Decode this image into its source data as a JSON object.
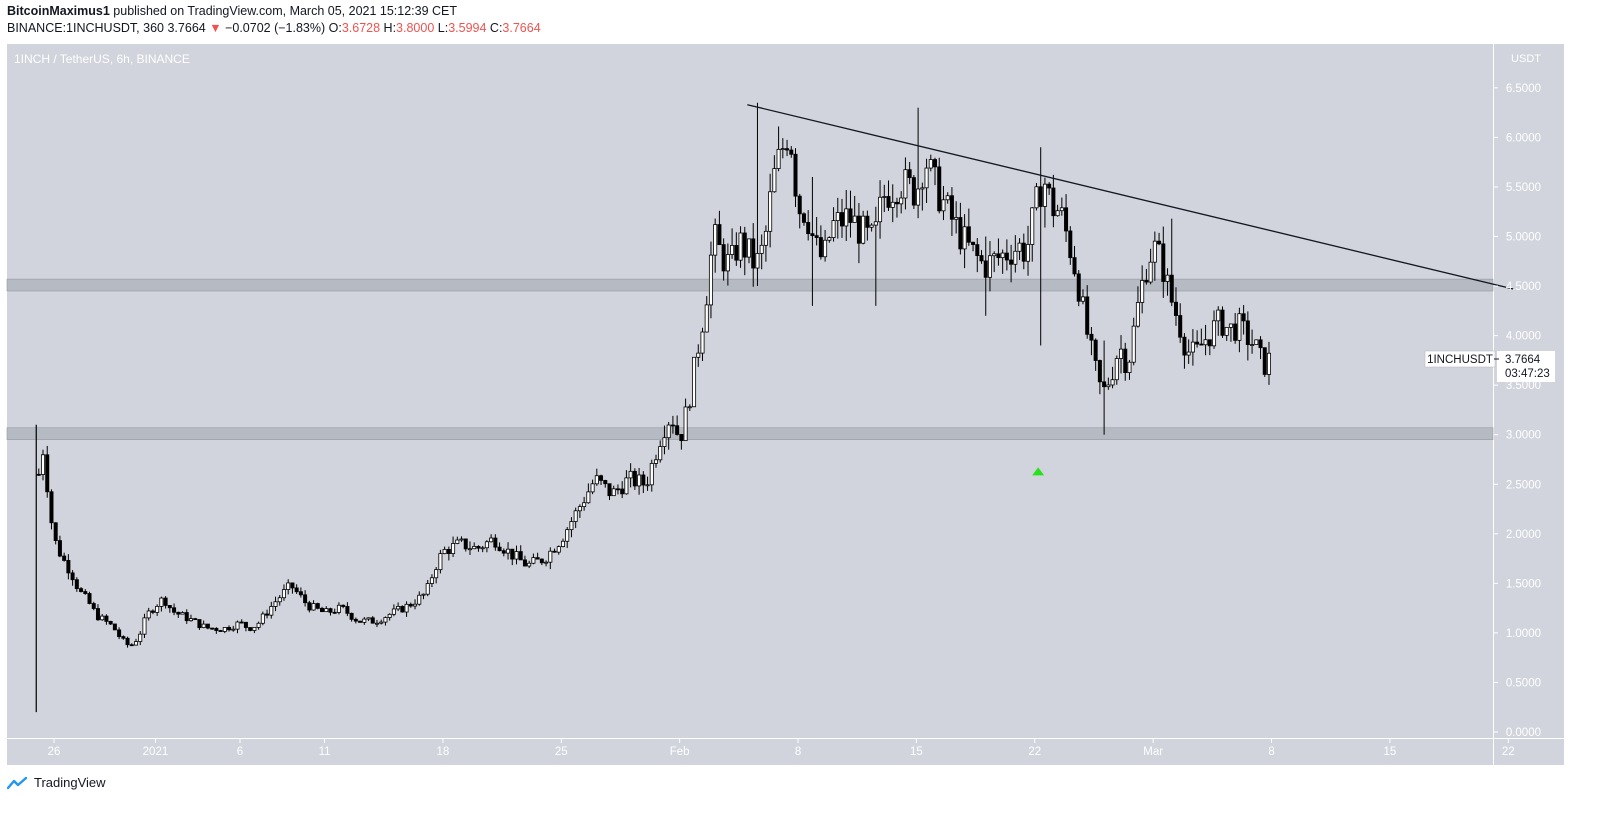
{
  "header": {
    "author": "BitcoinMaximus1",
    "published_text": "published on TradingView.com, March 05, 2021 15:12:39 CET",
    "symbol_line": "BINANCE:1INCHUSDT, 360",
    "last_price": "3.7664",
    "change_arrow": "▼",
    "change": "−0.0702 (−1.83%)",
    "open_label": "O:",
    "open": "3.6728",
    "high_label": "H:",
    "high": "3.8000",
    "low_label": "L:",
    "low": "3.5994",
    "close_label": "C:",
    "close": "3.7664"
  },
  "footer": {
    "brand": "TradingView"
  },
  "colors": {
    "plot_bg": "#d1d4dc",
    "candle": "#000000",
    "zone": "#b2b5be",
    "marker": "#26e21c",
    "down_text": "#ef5350"
  },
  "chart_data": {
    "type": "candlestick",
    "title": "1INCH / TetherUS, 6h, BINANCE",
    "y_axis_unit": "USDT",
    "ylim": [
      0,
      6.7
    ],
    "y_ticks": [
      "0.0000",
      "0.5000",
      "1.0000",
      "1.5000",
      "2.0000",
      "2.5000",
      "3.0000",
      "3.5000",
      "4.0000",
      "4.5000",
      "5.0000",
      "5.5000",
      "6.0000",
      "6.5000"
    ],
    "x_ticks": [
      {
        "label": "26",
        "day": 0
      },
      {
        "label": "2021",
        "day": 6
      },
      {
        "label": "6",
        "day": 11
      },
      {
        "label": "11",
        "day": 16
      },
      {
        "label": "18",
        "day": 23
      },
      {
        "label": "25",
        "day": 30
      },
      {
        "label": "Feb",
        "day": 37
      },
      {
        "label": "8",
        "day": 44
      },
      {
        "label": "15",
        "day": 51
      },
      {
        "label": "22",
        "day": 58
      },
      {
        "label": "Mar",
        "day": 65
      },
      {
        "label": "8",
        "day": 72
      },
      {
        "label": "15",
        "day": 79
      },
      {
        "label": "22",
        "day": 86
      }
    ],
    "price_label": {
      "symbol": "1INCHUSDT",
      "price": "3.7664",
      "countdown": "03:47:23"
    },
    "support_zones": [
      [
        2.95,
        3.07
      ],
      [
        4.45,
        4.57
      ]
    ],
    "trendline": {
      "from": {
        "day": 41,
        "price": 6.33
      },
      "to": {
        "day": 86.3,
        "price": 4.47
      }
    },
    "marker": {
      "day": 58.2,
      "price": 2.62
    },
    "anchors": [
      [
        -0.9,
        2.6
      ],
      [
        -0.6,
        2.9
      ],
      [
        -0.3,
        2.3
      ],
      [
        0,
        1.95
      ],
      [
        0.5,
        1.75
      ],
      [
        1,
        1.62
      ],
      [
        1.5,
        1.42
      ],
      [
        2,
        1.32
      ],
      [
        2.5,
        1.18
      ],
      [
        3,
        1.12
      ],
      [
        3.5,
        1.06
      ],
      [
        4,
        0.93
      ],
      [
        4.5,
        0.86
      ],
      [
        5,
        0.96
      ],
      [
        5.5,
        1.18
      ],
      [
        6,
        1.28
      ],
      [
        6.5,
        1.35
      ],
      [
        7,
        1.22
      ],
      [
        8,
        1.14
      ],
      [
        9,
        1.05
      ],
      [
        10,
        1.04
      ],
      [
        11,
        1.1
      ],
      [
        11.5,
        1.05
      ],
      [
        12,
        1.08
      ],
      [
        13,
        1.3
      ],
      [
        14,
        1.48
      ],
      [
        15,
        1.28
      ],
      [
        16,
        1.2
      ],
      [
        17,
        1.25
      ],
      [
        18,
        1.12
      ],
      [
        19,
        1.12
      ],
      [
        20,
        1.2
      ],
      [
        21,
        1.28
      ],
      [
        22,
        1.4
      ],
      [
        22.5,
        1.65
      ],
      [
        23,
        1.82
      ],
      [
        24,
        1.9
      ],
      [
        25,
        1.85
      ],
      [
        26,
        1.95
      ],
      [
        27,
        1.8
      ],
      [
        28,
        1.68
      ],
      [
        29,
        1.75
      ],
      [
        30,
        1.95
      ],
      [
        31,
        2.25
      ],
      [
        32,
        2.55
      ],
      [
        33,
        2.4
      ],
      [
        34,
        2.55
      ],
      [
        35,
        2.5
      ],
      [
        36,
        3.05
      ],
      [
        36.5,
        3.2
      ],
      [
        37,
        2.95
      ],
      [
        37.5,
        3.3
      ],
      [
        38,
        3.8
      ],
      [
        38.5,
        4.3
      ],
      [
        39,
        5.0
      ],
      [
        39.5,
        4.8
      ],
      [
        40,
        4.7
      ],
      [
        40.5,
        4.95
      ],
      [
        41,
        4.85
      ],
      [
        41.5,
        4.7
      ],
      [
        42,
        4.9
      ],
      [
        42.5,
        5.55
      ],
      [
        43,
        5.85
      ],
      [
        43.5,
        6.1
      ],
      [
        44,
        5.3
      ],
      [
        44.5,
        5.25
      ],
      [
        45,
        4.9
      ],
      [
        45.5,
        4.75
      ],
      [
        46,
        5.1
      ],
      [
        47,
        5.2
      ],
      [
        48,
        5.0
      ],
      [
        48.5,
        4.95
      ],
      [
        49,
        5.4
      ],
      [
        50,
        5.55
      ],
      [
        51,
        5.45
      ],
      [
        51.5,
        5.8
      ],
      [
        52,
        5.55
      ],
      [
        53,
        5.2
      ],
      [
        54,
        4.9
      ],
      [
        55,
        4.7
      ],
      [
        56,
        4.8
      ],
      [
        57,
        4.9
      ],
      [
        57.5,
        4.85
      ],
      [
        58,
        5.25
      ],
      [
        58.5,
        5.6
      ],
      [
        59,
        5.3
      ],
      [
        59.5,
        5.25
      ],
      [
        60,
        4.95
      ],
      [
        60.5,
        4.6
      ],
      [
        61,
        4.1
      ],
      [
        61.5,
        3.7
      ],
      [
        62,
        3.4
      ],
      [
        62.5,
        3.6
      ],
      [
        63,
        3.9
      ],
      [
        63.5,
        3.7
      ],
      [
        64,
        4.2
      ],
      [
        64.5,
        4.65
      ],
      [
        65,
        4.9
      ],
      [
        65.5,
        4.75
      ],
      [
        66,
        4.4
      ],
      [
        66.5,
        4.15
      ],
      [
        67,
        3.85
      ],
      [
        67.5,
        3.8
      ],
      [
        68,
        3.95
      ],
      [
        68.5,
        4.05
      ],
      [
        69,
        4.15
      ],
      [
        69.5,
        4.05
      ],
      [
        70,
        4.1
      ],
      [
        70.5,
        4.0
      ],
      [
        71,
        3.9
      ],
      [
        71.5,
        3.7
      ],
      [
        72,
        3.77
      ]
    ],
    "wick_extremes": [
      {
        "day": -1.05,
        "low": 0.2,
        "high": 3.1
      },
      {
        "day": 41.5,
        "low": 4.5,
        "high": 6.35
      },
      {
        "day": 51.2,
        "low": 5.2,
        "high": 6.3
      },
      {
        "day": 58.4,
        "low": 3.9,
        "high": 5.9
      },
      {
        "day": 62.1,
        "low": 3.0,
        "high": 3.95
      },
      {
        "day": 66,
        "low": 4.4,
        "high": 5.18
      },
      {
        "day": 48.5,
        "low": 4.3,
        "high": 5.3
      },
      {
        "day": 44.8,
        "low": 4.3,
        "high": 5.6
      },
      {
        "day": 55,
        "low": 4.2,
        "high": 5.0
      }
    ]
  }
}
